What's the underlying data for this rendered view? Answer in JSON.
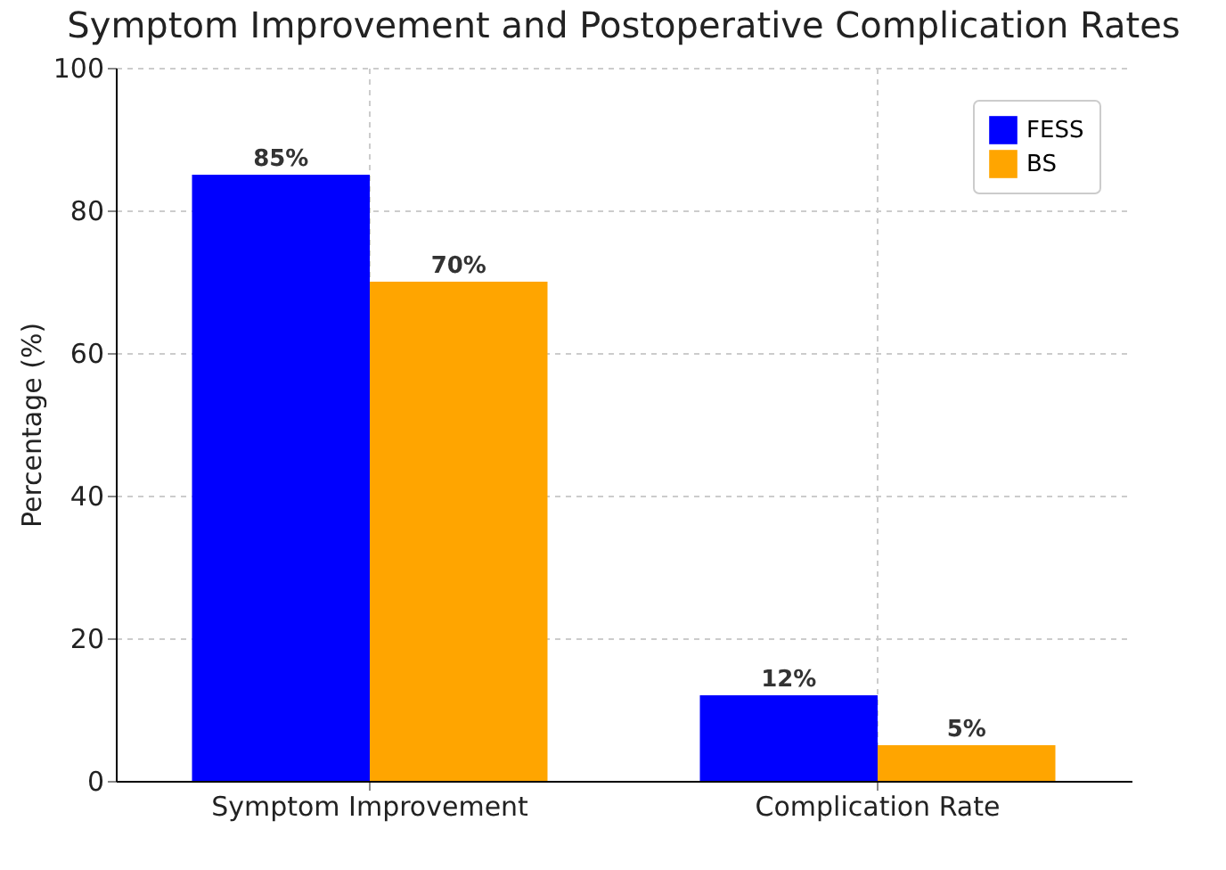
{
  "chart_data": {
    "type": "bar",
    "title": "Symptom Improvement and Postoperative Complication Rates",
    "ylabel": "Percentage (%)",
    "categories": [
      "Symptom Improvement",
      "Complication Rate"
    ],
    "series": [
      {
        "name": "FESS",
        "color": "#0000ff",
        "values": [
          85,
          12
        ],
        "value_labels": [
          "85%",
          "12%"
        ]
      },
      {
        "name": "BS",
        "color": "#ffa500",
        "values": [
          70,
          5
        ],
        "value_labels": [
          "70%",
          "5%"
        ]
      }
    ],
    "ylim": [
      0,
      100
    ],
    "yticks": [
      0,
      20,
      40,
      60,
      80,
      100
    ],
    "grid": true,
    "legend": "top right"
  }
}
